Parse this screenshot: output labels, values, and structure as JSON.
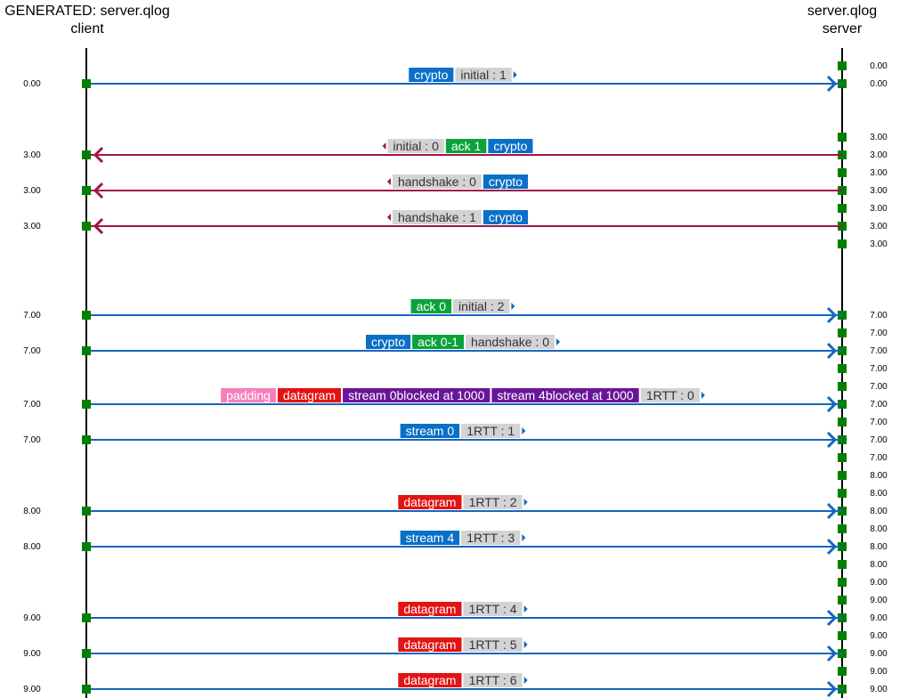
{
  "header": {
    "left_title": "GENERATED: server.qlog",
    "left_role": "client",
    "right_title": "server.qlog",
    "right_role": "server"
  },
  "colors": {
    "client_to_server": "#1565c0",
    "server_to_client": "#a0154a",
    "event_marker": "#008000",
    "frame_crypto": "#0a6fc7",
    "frame_ack": "#0aa33a",
    "frame_padding": "#f77fb9",
    "frame_datagram": "#e31313",
    "frame_stream_blocked": "#6a1599",
    "frame_stream": "#0a6fc7",
    "packet_header": "#d3d3d3"
  },
  "server_event_times": [
    "0.00",
    "0.00",
    "3.00",
    "3.00",
    "3.00",
    "3.00",
    "3.00",
    "3.00",
    "3.00",
    "7.00",
    "7.00",
    "7.00",
    "7.00",
    "7.00",
    "7.00",
    "7.00",
    "7.00",
    "7.00",
    "8.00",
    "8.00",
    "8.00",
    "8.00",
    "8.00",
    "8.00",
    "9.00",
    "9.00",
    "9.00",
    "9.00",
    "9.00",
    "9.00",
    "9.00",
    "9.00"
  ],
  "messages": [
    {
      "time": "0.00",
      "direction": "to-server",
      "parts": [
        {
          "label": "crypto",
          "kind": "crypto"
        },
        {
          "label": "initial : 1",
          "kind": "pkt"
        }
      ]
    },
    {
      "time": "3.00",
      "direction": "to-client",
      "parts": [
        {
          "label": "initial : 0",
          "kind": "pkt"
        },
        {
          "label": "ack 1",
          "kind": "ack"
        },
        {
          "label": "crypto",
          "kind": "crypto"
        }
      ]
    },
    {
      "time": "3.00",
      "direction": "to-client",
      "parts": [
        {
          "label": "handshake : 0",
          "kind": "pkt"
        },
        {
          "label": "crypto",
          "kind": "crypto"
        }
      ]
    },
    {
      "time": "3.00",
      "direction": "to-client",
      "parts": [
        {
          "label": "handshake : 1",
          "kind": "pkt"
        },
        {
          "label": "crypto",
          "kind": "crypto"
        }
      ]
    },
    {
      "time": "7.00",
      "direction": "to-server",
      "parts": [
        {
          "label": "ack 0",
          "kind": "ack"
        },
        {
          "label": "initial : 2",
          "kind": "pkt"
        }
      ]
    },
    {
      "time": "7.00",
      "direction": "to-server",
      "parts": [
        {
          "label": "crypto",
          "kind": "crypto"
        },
        {
          "label": "ack 0-1",
          "kind": "ack"
        },
        {
          "label": "handshake : 0",
          "kind": "pkt"
        }
      ]
    },
    {
      "time": "7.00",
      "direction": "to-server",
      "parts": [
        {
          "label": "padding",
          "kind": "padding"
        },
        {
          "label": "datagram",
          "kind": "datagram"
        },
        {
          "label": "stream 0blocked at 1000",
          "kind": "blocked"
        },
        {
          "label": "stream 4blocked at 1000",
          "kind": "blocked"
        },
        {
          "label": "1RTT : 0",
          "kind": "pkt"
        }
      ]
    },
    {
      "time": "7.00",
      "direction": "to-server",
      "parts": [
        {
          "label": "stream 0",
          "kind": "stream"
        },
        {
          "label": "1RTT : 1",
          "kind": "pkt"
        }
      ]
    },
    {
      "time": "8.00",
      "direction": "to-server",
      "parts": [
        {
          "label": "datagram",
          "kind": "datagram"
        },
        {
          "label": "1RTT : 2",
          "kind": "pkt"
        }
      ]
    },
    {
      "time": "8.00",
      "direction": "to-server",
      "parts": [
        {
          "label": "stream 4",
          "kind": "stream"
        },
        {
          "label": "1RTT : 3",
          "kind": "pkt"
        }
      ]
    },
    {
      "time": "9.00",
      "direction": "to-server",
      "parts": [
        {
          "label": "datagram",
          "kind": "datagram"
        },
        {
          "label": "1RTT : 4",
          "kind": "pkt"
        }
      ]
    },
    {
      "time": "9.00",
      "direction": "to-server",
      "parts": [
        {
          "label": "datagram",
          "kind": "datagram"
        },
        {
          "label": "1RTT : 5",
          "kind": "pkt"
        }
      ]
    },
    {
      "time": "9.00",
      "direction": "to-server",
      "parts": [
        {
          "label": "datagram",
          "kind": "datagram"
        },
        {
          "label": "1RTT : 6",
          "kind": "pkt"
        }
      ]
    }
  ]
}
